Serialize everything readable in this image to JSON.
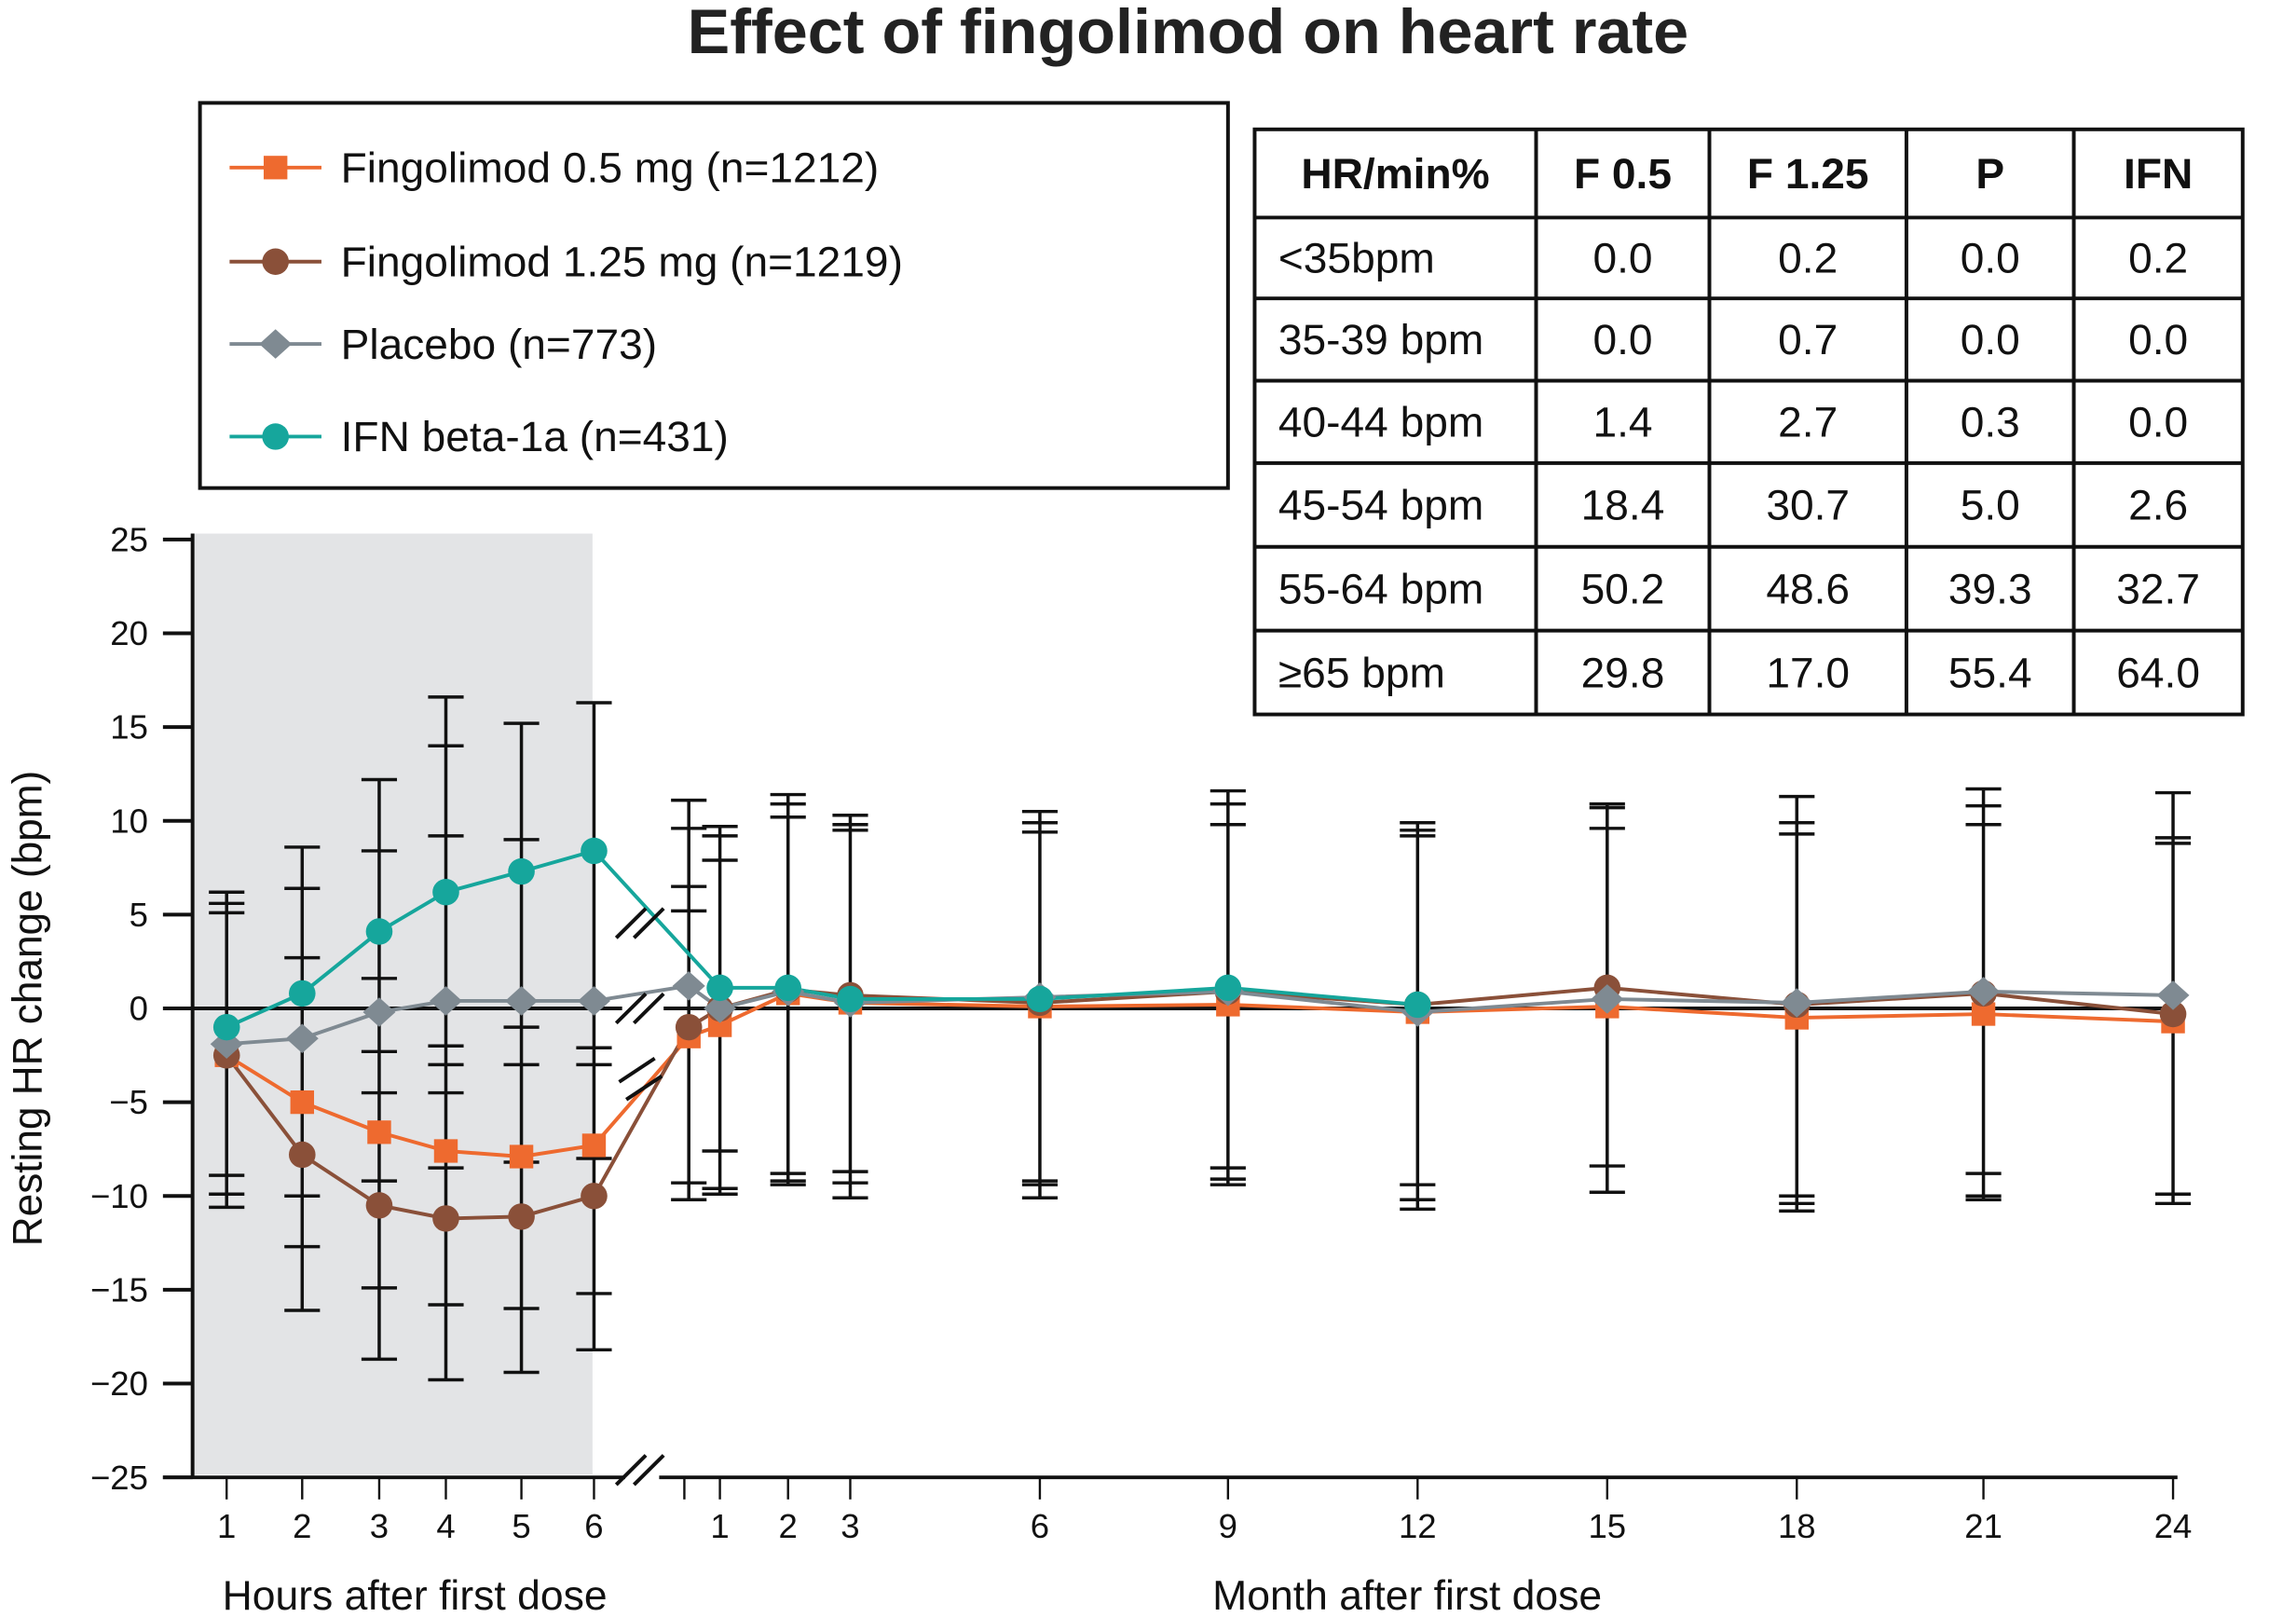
{
  "chart_data": {
    "type": "line",
    "title": "Effect of fingolimod on heart rate",
    "ylabel": "Resting HR change (bpm)",
    "ylim": [
      -25,
      25
    ],
    "yticks": [
      25,
      20,
      15,
      10,
      5,
      0,
      -5,
      -10,
      -15,
      -20,
      -25
    ],
    "ytick_labels": [
      "25",
      "20",
      "15",
      "10",
      "5",
      "0",
      "−5",
      "−10",
      "−15",
      "−20",
      "−25"
    ],
    "grid": false,
    "legend_position": "top-left",
    "x_segments": [
      {
        "name": "hours",
        "xlabel": "Hours after first dose",
        "ticks": [
          1,
          2,
          3,
          4,
          5,
          6
        ],
        "tick_labels": [
          "1",
          "2",
          "3",
          "4",
          "5",
          "6"
        ],
        "shaded": true
      },
      {
        "name": "months",
        "xlabel": "Month after first dose",
        "ticks": [
          1,
          2,
          3,
          6,
          9,
          12,
          15,
          18,
          21,
          24
        ],
        "tick_labels": [
          "1",
          "2",
          "3",
          "6",
          "9",
          "12",
          "15",
          "18",
          "21",
          "24"
        ],
        "shaded": false
      }
    ],
    "series": [
      {
        "name": "Fingolimod 0.5 mg (n=1212)",
        "color": "#ee6a2f",
        "marker": "square",
        "hours": [
          -2.5,
          -5.0,
          -6.6,
          -7.6,
          -7.9,
          -7.3
        ],
        "months_points": [
          [
            "0.5",
            -1.5
          ],
          [
            "1",
            -0.9
          ],
          [
            "2",
            0.8
          ],
          [
            "3",
            0.3
          ],
          [
            "6",
            0.1
          ],
          [
            "9",
            0.2
          ],
          [
            "12",
            -0.2
          ],
          [
            "15",
            0.1
          ],
          [
            "18",
            -0.5
          ],
          [
            "21",
            -0.3
          ],
          [
            "24",
            -0.7
          ]
        ]
      },
      {
        "name": "Fingolimod 1.25 mg (n=1219)",
        "color": "#8a5039",
        "marker": "circle",
        "hours": [
          -2.5,
          -7.8,
          -10.5,
          -11.2,
          -11.1,
          -10.0
        ],
        "months_points": [
          [
            "0.5",
            -1.0
          ],
          [
            "1",
            0.0
          ],
          [
            "2",
            1.0
          ],
          [
            "3",
            0.7
          ],
          [
            "6",
            0.3
          ],
          [
            "9",
            0.9
          ],
          [
            "12",
            0.2
          ],
          [
            "15",
            1.1
          ],
          [
            "18",
            0.2
          ],
          [
            "21",
            0.8
          ],
          [
            "24",
            -0.3
          ]
        ]
      },
      {
        "name": "Placebo (n=773)",
        "color": "#7f8a92",
        "marker": "diamond",
        "hours": [
          -1.9,
          -1.6,
          -0.2,
          0.4,
          0.4,
          0.4
        ],
        "months_points": [
          [
            "0.5",
            1.2
          ],
          [
            "1",
            0.0
          ],
          [
            "2",
            0.9
          ],
          [
            "3",
            0.3
          ],
          [
            "6",
            0.6
          ],
          [
            "9",
            0.9
          ],
          [
            "12",
            -0.2
          ],
          [
            "15",
            0.5
          ],
          [
            "18",
            0.3
          ],
          [
            "21",
            0.9
          ],
          [
            "24",
            0.7
          ]
        ]
      },
      {
        "name": "IFN beta-1a (n=431)",
        "color": "#16a69c",
        "marker": "circle",
        "hours": [
          -1.0,
          0.8,
          4.1,
          6.2,
          7.3,
          8.4
        ],
        "months_points": [
          [
            "1",
            1.1
          ],
          [
            "2",
            1.1
          ],
          [
            "3",
            0.5
          ],
          [
            "6",
            0.5
          ],
          [
            "9",
            1.1
          ],
          [
            "12",
            0.2
          ]
        ]
      }
    ],
    "error_bars": {
      "hours": [
        {
          "x": 1,
          "upper": [
            6.2,
            5.6,
            5.1
          ],
          "lower": [
            -8.9,
            -9.9,
            -10.6
          ]
        },
        {
          "x": 2,
          "upper": [
            8.6,
            6.4,
            2.7
          ],
          "lower": [
            -10.0,
            -12.7,
            -16.1
          ]
        },
        {
          "x": 3,
          "upper": [
            12.2,
            8.4,
            1.6,
            -2.3,
            -4.5
          ],
          "lower": [
            -9.2,
            -14.9,
            -18.7
          ]
        },
        {
          "x": 4,
          "upper": [
            16.6,
            14.0,
            9.2,
            -2.0,
            -3.0,
            -4.5
          ],
          "lower": [
            -8.5,
            -15.8,
            -19.8
          ]
        },
        {
          "x": 5,
          "upper": [
            15.2,
            9.0,
            -1.0,
            -3.0
          ],
          "lower": [
            -8.2,
            -16.0,
            -19.4
          ]
        },
        {
          "x": 6,
          "upper": [
            16.3,
            -2.1,
            -3.0
          ],
          "lower": [
            -8.0,
            -15.2,
            -18.2
          ]
        }
      ],
      "months": [
        {
          "x": "0.5",
          "upper": [
            11.1,
            9.6,
            6.5,
            5.2
          ],
          "lower": [
            -9.3,
            -10.2
          ]
        },
        {
          "x": "1",
          "upper": [
            9.7,
            9.2,
            7.9
          ],
          "lower": [
            -7.6,
            -9.6,
            -9.9
          ]
        },
        {
          "x": "2",
          "upper": [
            11.4,
            10.9,
            10.2
          ],
          "lower": [
            -8.8,
            -9.2,
            -9.4
          ]
        },
        {
          "x": "3",
          "upper": [
            10.3,
            9.8,
            9.5
          ],
          "lower": [
            -8.7,
            -9.3,
            -10.1
          ]
        },
        {
          "x": "6",
          "upper": [
            10.5,
            9.9,
            9.4
          ],
          "lower": [
            -9.2,
            -9.4,
            -10.1
          ]
        },
        {
          "x": "9",
          "upper": [
            11.6,
            10.9,
            9.8
          ],
          "lower": [
            -8.5,
            -9.1,
            -9.4
          ]
        },
        {
          "x": "12",
          "upper": [
            9.9,
            9.5,
            9.2
          ],
          "lower": [
            -9.4,
            -10.2,
            -10.7
          ]
        },
        {
          "x": "15",
          "upper": [
            10.9,
            10.7,
            9.6
          ],
          "lower": [
            -8.4,
            -9.8
          ]
        },
        {
          "x": "18",
          "upper": [
            11.3,
            9.9,
            9.3
          ],
          "lower": [
            -10.0,
            -10.4,
            -10.8
          ]
        },
        {
          "x": "21",
          "upper": [
            11.7,
            10.8,
            9.8
          ],
          "lower": [
            -8.8,
            -10.0,
            -10.2
          ]
        },
        {
          "x": "24",
          "upper": [
            11.5,
            9.1,
            8.8
          ],
          "lower": [
            -9.9,
            -10.4
          ]
        }
      ]
    }
  },
  "table": {
    "headers": [
      "HR/min%",
      "F 0.5",
      "F 1.25",
      "P",
      "IFN"
    ],
    "rows": [
      [
        "<35bpm",
        "0.0",
        "0.2",
        "0.0",
        "0.2"
      ],
      [
        "35-39 bpm",
        "0.0",
        "0.7",
        "0.0",
        "0.0"
      ],
      [
        "40-44 bpm",
        "1.4",
        "2.7",
        "0.3",
        "0.0"
      ],
      [
        "45-54 bpm",
        "18.4",
        "30.7",
        "5.0",
        "2.6"
      ],
      [
        "55-64 bpm",
        "50.2",
        "48.6",
        "39.3",
        "32.7"
      ],
      [
        "≥65 bpm",
        "29.8",
        "17.0",
        "55.4",
        "64.0"
      ]
    ]
  }
}
